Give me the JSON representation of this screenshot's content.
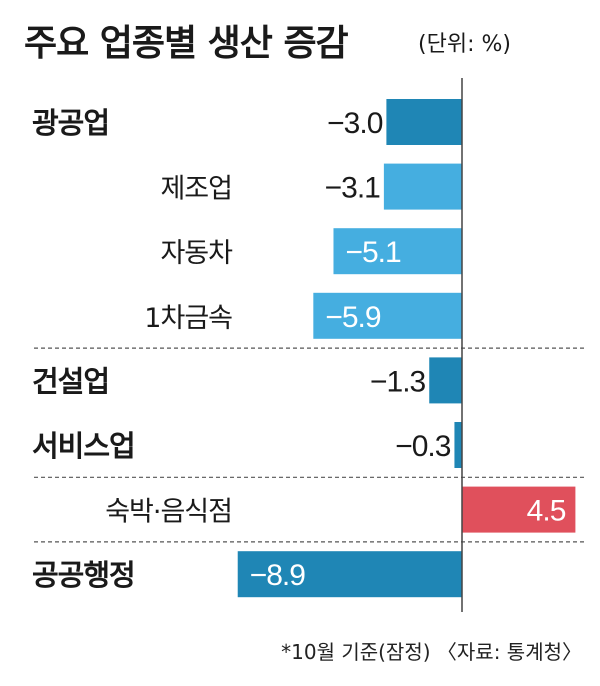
{
  "header": {
    "title": "주요 업종별 생산 증감",
    "unit": "(단위: %)"
  },
  "footnote": "*10월 기준(잠정) 〈자료: 통계청〉",
  "colors": {
    "primary": "#1f86b5",
    "secondary": "#45aee0",
    "negative_highlight": "#e0505c",
    "axis": "#444444",
    "divider": "#555555"
  },
  "chart_data": {
    "type": "bar",
    "orientation": "horizontal",
    "title": "주요 업종별 생산 증감",
    "unit": "%",
    "categories": [
      "광공업",
      "제조업",
      "자동차",
      "1차금속",
      "건설업",
      "서비스업",
      "숙박·음식점",
      "공공행정"
    ],
    "values": [
      -3.0,
      -3.1,
      -5.1,
      -5.9,
      -1.3,
      -0.3,
      4.5,
      -8.9
    ],
    "value_labels": [
      "−3.0",
      "−3.1",
      "−5.1",
      "−5.9",
      "−1.3",
      "−0.3",
      "4.5",
      "−8.9"
    ],
    "levels": [
      "main",
      "sub",
      "sub",
      "sub",
      "main",
      "main",
      "sub",
      "main"
    ],
    "xlim": [
      -10,
      5
    ],
    "grid": false,
    "legend": "none"
  }
}
